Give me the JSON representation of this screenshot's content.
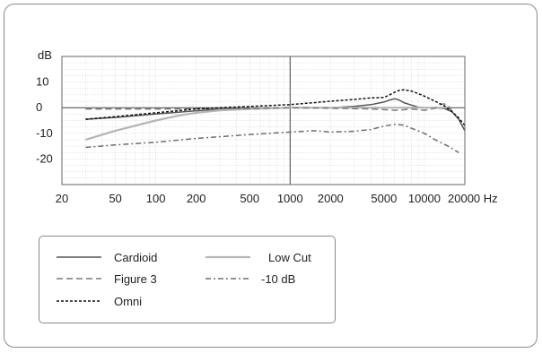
{
  "chart_data": {
    "type": "line",
    "xscale": "log",
    "xlim": [
      20,
      20000
    ],
    "ylim": [
      -30,
      20
    ],
    "grid": true,
    "ylabel": "dB",
    "xunit": "Hz",
    "x_ticks": [
      20,
      50,
      100,
      200,
      500,
      1000,
      2000,
      5000,
      10000,
      20000
    ],
    "x_tick_labels": [
      "20",
      "50",
      "100",
      "200",
      "500",
      "1000",
      "2000",
      "5000",
      "10000",
      "20000 Hz"
    ],
    "y_ticks": [
      -20,
      -10,
      0,
      10
    ],
    "y_tick_labels": [
      "-20",
      "-10",
      "0",
      "10"
    ],
    "reference_lines": {
      "y": 0,
      "x": 1000
    },
    "legend_position": "bottom-left",
    "series": [
      {
        "name": "Cardioid",
        "color": "#555555",
        "dash": "solid",
        "x": [
          30,
          50,
          100,
          200,
          300,
          500,
          1000,
          2000,
          3000,
          4000,
          5000,
          5500,
          6000,
          6500,
          7000,
          8000,
          9000,
          10000,
          12000,
          14000,
          16000,
          18000,
          20000
        ],
        "y": [
          -4.5,
          -3.8,
          -2.5,
          -1.2,
          -0.6,
          -0.2,
          0,
          0,
          0.5,
          1.2,
          2.2,
          3,
          3.5,
          3,
          2,
          1,
          0.2,
          0,
          0,
          -0.3,
          -1.5,
          -4.5,
          -9
        ]
      },
      {
        "name": "Low Cut",
        "color": "#b5b5b5",
        "dash": "solid",
        "x": [
          30,
          50,
          100,
          150,
          200,
          300,
          500,
          1000,
          2000,
          5000,
          10000,
          15000
        ],
        "y": [
          -12.5,
          -9,
          -5,
          -3,
          -2,
          -1,
          -0.5,
          0,
          0,
          0,
          0,
          0
        ]
      },
      {
        "name": "Figure 3",
        "color": "#7a7a7a",
        "dash": "long-dash",
        "x": [
          30,
          100,
          500,
          1000,
          2000,
          4000,
          6000,
          7000,
          8000,
          10000,
          12000,
          13000,
          14000,
          15000,
          16000,
          17000
        ],
        "y": [
          -0.5,
          -0.5,
          -0.3,
          0,
          -0.2,
          -0.5,
          -1,
          -0.8,
          -0.5,
          -1,
          -0.2,
          1.2,
          1.5,
          0.8,
          -1.2,
          -3
        ]
      },
      {
        "name": "-10 dB",
        "color": "#6e6e6e",
        "dash": "dash-dot",
        "x": [
          30,
          50,
          100,
          200,
          500,
          1000,
          1500,
          2000,
          3000,
          4000,
          5000,
          6000,
          7000,
          8000,
          10000,
          12000,
          15000,
          18000
        ],
        "y": [
          -15.5,
          -14.5,
          -13.5,
          -12,
          -10.5,
          -9.5,
          -9,
          -9.5,
          -9.2,
          -8.5,
          -7.2,
          -6.5,
          -6.8,
          -8,
          -10,
          -12.5,
          -15,
          -17.5
        ]
      },
      {
        "name": "Omni",
        "color": "#111111",
        "dash": "dotted",
        "x": [
          30,
          50,
          100,
          200,
          300,
          500,
          1000,
          2000,
          3000,
          4000,
          5000,
          5500,
          6000,
          6500,
          7000,
          8000,
          9000,
          10000,
          12000,
          14000,
          16000,
          18000,
          20000
        ],
        "y": [
          -4.5,
          -3.5,
          -2,
          -0.5,
          0,
          0.5,
          1.2,
          2.5,
          3.2,
          3.8,
          4,
          5,
          6,
          6.8,
          7,
          6.5,
          5.5,
          4.5,
          2.5,
          0.8,
          -1.5,
          -4,
          -7
        ]
      }
    ]
  }
}
